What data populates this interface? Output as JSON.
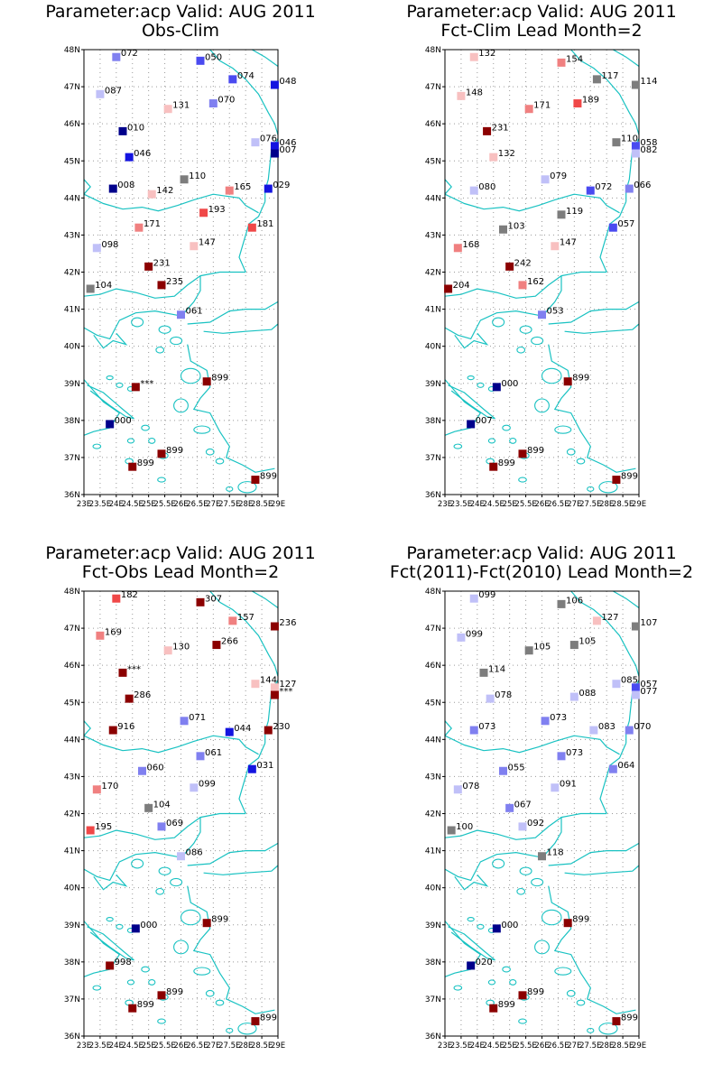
{
  "colors": {
    "coast": "#19c2c2",
    "grid": "#9a9a9a",
    "frame": "#000000",
    "gray": "#7d7d7d",
    "scale": [
      "#00008b",
      "#1414e0",
      "#4a4af0",
      "#8080f0",
      "#c0c0f8",
      "#f8c0c0",
      "#f08080",
      "#f04848",
      "#d81414",
      "#8b0000"
    ]
  },
  "axes": {
    "lat_ticks": [
      "36N",
      "37N",
      "38N",
      "39N",
      "40N",
      "41N",
      "42N",
      "43N",
      "44N",
      "45N",
      "46N",
      "47N",
      "48N"
    ],
    "lon_ticks": [
      "23E",
      "23.5E",
      "24E",
      "24.5E",
      "25E",
      "25.5E",
      "26E",
      "26.5E",
      "27E",
      "27.5E",
      "28E",
      "28.5E",
      "29E"
    ],
    "xlim": [
      23,
      29
    ],
    "ylim": [
      36,
      48
    ]
  },
  "chart_data": [
    {
      "type": "scatter",
      "title": "Parameter:acp Valid: AUG 2011",
      "subtitle": "Obs-Clim",
      "points": [
        {
          "lon": 24.0,
          "lat": 47.8,
          "label": "072",
          "color": "#8080f0"
        },
        {
          "lon": 26.6,
          "lat": 47.7,
          "label": "050",
          "color": "#4a4af0"
        },
        {
          "lon": 27.6,
          "lat": 47.2,
          "label": "074",
          "color": "#4a4af0"
        },
        {
          "lon": 28.9,
          "lat": 47.05,
          "label": "048",
          "color": "#1414e0"
        },
        {
          "lon": 23.5,
          "lat": 46.8,
          "label": "087",
          "color": "#c0c0f8"
        },
        {
          "lon": 25.6,
          "lat": 46.4,
          "label": "131",
          "color": "#f8c0c0"
        },
        {
          "lon": 27.0,
          "lat": 46.55,
          "label": "070",
          "color": "#8080f0"
        },
        {
          "lon": 24.2,
          "lat": 45.8,
          "label": "010",
          "color": "#00008b"
        },
        {
          "lon": 28.3,
          "lat": 45.5,
          "label": "076",
          "color": "#c0c0f8"
        },
        {
          "lon": 28.9,
          "lat": 45.4,
          "label": "046",
          "color": "#1414e0"
        },
        {
          "lon": 28.9,
          "lat": 45.2,
          "label": "007",
          "color": "#00008b"
        },
        {
          "lon": 24.4,
          "lat": 45.1,
          "label": "046",
          "color": "#1414e0"
        },
        {
          "lon": 26.1,
          "lat": 44.5,
          "label": "110",
          "color": "#7d7d7d"
        },
        {
          "lon": 23.9,
          "lat": 44.25,
          "label": "008",
          "color": "#00008b"
        },
        {
          "lon": 25.1,
          "lat": 44.1,
          "label": "142",
          "color": "#f8c0c0"
        },
        {
          "lon": 27.5,
          "lat": 44.2,
          "label": "165",
          "color": "#f08080"
        },
        {
          "lon": 28.7,
          "lat": 44.25,
          "label": "029",
          "color": "#1414e0"
        },
        {
          "lon": 26.7,
          "lat": 43.6,
          "label": "193",
          "color": "#f04848"
        },
        {
          "lon": 24.7,
          "lat": 43.2,
          "label": "171",
          "color": "#f08080"
        },
        {
          "lon": 28.2,
          "lat": 43.2,
          "label": "181",
          "color": "#f04848"
        },
        {
          "lon": 23.4,
          "lat": 42.65,
          "label": "098",
          "color": "#c0c0f8"
        },
        {
          "lon": 26.4,
          "lat": 42.7,
          "label": "147",
          "color": "#f8c0c0"
        },
        {
          "lon": 25.0,
          "lat": 42.15,
          "label": "231",
          "color": "#8b0000"
        },
        {
          "lon": 25.4,
          "lat": 41.65,
          "label": "235",
          "color": "#8b0000"
        },
        {
          "lon": 23.2,
          "lat": 41.55,
          "label": "104",
          "color": "#7d7d7d"
        },
        {
          "lon": 26.0,
          "lat": 40.85,
          "label": "061",
          "color": "#8080f0"
        },
        {
          "lon": 26.8,
          "lat": 39.05,
          "label": "899",
          "color": "#8b0000"
        },
        {
          "lon": 24.6,
          "lat": 38.9,
          "label": "***",
          "color": "#8b0000"
        },
        {
          "lon": 23.8,
          "lat": 37.9,
          "label": "000",
          "color": "#00008b"
        },
        {
          "lon": 25.4,
          "lat": 37.1,
          "label": "899",
          "color": "#8b0000"
        },
        {
          "lon": 24.5,
          "lat": 36.75,
          "label": "899",
          "color": "#8b0000"
        },
        {
          "lon": 28.3,
          "lat": 36.4,
          "label": "899",
          "color": "#8b0000"
        }
      ]
    },
    {
      "type": "scatter",
      "title": "Parameter:acp Valid: AUG 2011",
      "subtitle": "Fct-Clim Lead Month=2",
      "points": [
        {
          "lon": 23.9,
          "lat": 47.8,
          "label": "132",
          "color": "#f8c0c0"
        },
        {
          "lon": 26.6,
          "lat": 47.65,
          "label": "154",
          "color": "#f08080"
        },
        {
          "lon": 27.7,
          "lat": 47.2,
          "label": "117",
          "color": "#7d7d7d"
        },
        {
          "lon": 28.9,
          "lat": 47.05,
          "label": "114",
          "color": "#7d7d7d"
        },
        {
          "lon": 23.5,
          "lat": 46.75,
          "label": "148",
          "color": "#f8c0c0"
        },
        {
          "lon": 25.6,
          "lat": 46.4,
          "label": "171",
          "color": "#f08080"
        },
        {
          "lon": 27.1,
          "lat": 46.55,
          "label": "189",
          "color": "#f04848"
        },
        {
          "lon": 24.3,
          "lat": 45.8,
          "label": "231",
          "color": "#8b0000"
        },
        {
          "lon": 28.3,
          "lat": 45.5,
          "label": "110",
          "color": "#7d7d7d"
        },
        {
          "lon": 28.9,
          "lat": 45.4,
          "label": "058",
          "color": "#4a4af0"
        },
        {
          "lon": 28.9,
          "lat": 45.2,
          "label": "082",
          "color": "#c0c0f8"
        },
        {
          "lon": 24.5,
          "lat": 45.1,
          "label": "132",
          "color": "#f8c0c0"
        },
        {
          "lon": 26.1,
          "lat": 44.5,
          "label": "079",
          "color": "#c0c0f8"
        },
        {
          "lon": 23.9,
          "lat": 44.2,
          "label": "080",
          "color": "#c0c0f8"
        },
        {
          "lon": 27.5,
          "lat": 44.2,
          "label": "072",
          "color": "#4a4af0"
        },
        {
          "lon": 28.7,
          "lat": 44.25,
          "label": "066",
          "color": "#8080f0"
        },
        {
          "lon": 26.6,
          "lat": 43.55,
          "label": "119",
          "color": "#7d7d7d"
        },
        {
          "lon": 28.2,
          "lat": 43.2,
          "label": "057",
          "color": "#4a4af0"
        },
        {
          "lon": 24.8,
          "lat": 43.15,
          "label": "103",
          "color": "#7d7d7d"
        },
        {
          "lon": 23.4,
          "lat": 42.65,
          "label": "168",
          "color": "#f08080"
        },
        {
          "lon": 26.4,
          "lat": 42.7,
          "label": "147",
          "color": "#f8c0c0"
        },
        {
          "lon": 25.0,
          "lat": 42.15,
          "label": "242",
          "color": "#8b0000"
        },
        {
          "lon": 25.4,
          "lat": 41.65,
          "label": "162",
          "color": "#f08080"
        },
        {
          "lon": 23.1,
          "lat": 41.55,
          "label": "204",
          "color": "#8b0000"
        },
        {
          "lon": 26.0,
          "lat": 40.85,
          "label": "053",
          "color": "#8080f0"
        },
        {
          "lon": 26.8,
          "lat": 39.05,
          "label": "899",
          "color": "#8b0000"
        },
        {
          "lon": 24.6,
          "lat": 38.9,
          "label": "000",
          "color": "#00008b"
        },
        {
          "lon": 23.8,
          "lat": 37.9,
          "label": "007",
          "color": "#00008b"
        },
        {
          "lon": 25.4,
          "lat": 37.1,
          "label": "899",
          "color": "#8b0000"
        },
        {
          "lon": 24.5,
          "lat": 36.75,
          "label": "899",
          "color": "#8b0000"
        },
        {
          "lon": 28.3,
          "lat": 36.4,
          "label": "899",
          "color": "#8b0000"
        }
      ]
    },
    {
      "type": "scatter",
      "title": "Parameter:acp Valid: AUG 2011",
      "subtitle": "Fct-Obs Lead Month=2",
      "points": [
        {
          "lon": 24.0,
          "lat": 47.8,
          "label": "182",
          "color": "#f04848"
        },
        {
          "lon": 26.6,
          "lat": 47.7,
          "label": "307",
          "color": "#8b0000"
        },
        {
          "lon": 27.6,
          "lat": 47.2,
          "label": "157",
          "color": "#f08080"
        },
        {
          "lon": 28.9,
          "lat": 47.05,
          "label": "236",
          "color": "#8b0000"
        },
        {
          "lon": 23.5,
          "lat": 46.8,
          "label": "169",
          "color": "#f08080"
        },
        {
          "lon": 25.6,
          "lat": 46.4,
          "label": "130",
          "color": "#f8c0c0"
        },
        {
          "lon": 27.1,
          "lat": 46.55,
          "label": "266",
          "color": "#8b0000"
        },
        {
          "lon": 24.2,
          "lat": 45.8,
          "label": "***",
          "color": "#8b0000"
        },
        {
          "lon": 28.3,
          "lat": 45.5,
          "label": "144",
          "color": "#f8c0c0"
        },
        {
          "lon": 28.9,
          "lat": 45.4,
          "label": "127",
          "color": "#f8c0c0"
        },
        {
          "lon": 28.9,
          "lat": 45.2,
          "label": "***",
          "color": "#8b0000"
        },
        {
          "lon": 24.4,
          "lat": 45.1,
          "label": "286",
          "color": "#8b0000"
        },
        {
          "lon": 26.1,
          "lat": 44.5,
          "label": "071",
          "color": "#8080f0"
        },
        {
          "lon": 23.9,
          "lat": 44.25,
          "label": "916",
          "color": "#8b0000"
        },
        {
          "lon": 27.5,
          "lat": 44.2,
          "label": "044",
          "color": "#1414e0"
        },
        {
          "lon": 28.7,
          "lat": 44.25,
          "label": "230",
          "color": "#8b0000"
        },
        {
          "lon": 26.6,
          "lat": 43.55,
          "label": "061",
          "color": "#8080f0"
        },
        {
          "lon": 28.2,
          "lat": 43.2,
          "label": "031",
          "color": "#1414e0"
        },
        {
          "lon": 24.8,
          "lat": 43.15,
          "label": "060",
          "color": "#8080f0"
        },
        {
          "lon": 23.4,
          "lat": 42.65,
          "label": "170",
          "color": "#f08080"
        },
        {
          "lon": 26.4,
          "lat": 42.7,
          "label": "099",
          "color": "#c0c0f8"
        },
        {
          "lon": 25.0,
          "lat": 42.15,
          "label": "104",
          "color": "#7d7d7d"
        },
        {
          "lon": 25.4,
          "lat": 41.65,
          "label": "069",
          "color": "#8080f0"
        },
        {
          "lon": 23.2,
          "lat": 41.55,
          "label": "195",
          "color": "#f04848"
        },
        {
          "lon": 26.0,
          "lat": 40.85,
          "label": "086",
          "color": "#c0c0f8"
        },
        {
          "lon": 26.8,
          "lat": 39.05,
          "label": "899",
          "color": "#8b0000"
        },
        {
          "lon": 24.6,
          "lat": 38.9,
          "label": "000",
          "color": "#00008b"
        },
        {
          "lon": 23.8,
          "lat": 37.9,
          "label": "998",
          "color": "#8b0000"
        },
        {
          "lon": 25.4,
          "lat": 37.1,
          "label": "899",
          "color": "#8b0000"
        },
        {
          "lon": 24.5,
          "lat": 36.75,
          "label": "899",
          "color": "#8b0000"
        },
        {
          "lon": 28.3,
          "lat": 36.4,
          "label": "899",
          "color": "#8b0000"
        }
      ]
    },
    {
      "type": "scatter",
      "title": "Parameter:acp Valid: AUG 2011",
      "subtitle": "Fct(2011)-Fct(2010) Lead Month=2",
      "points": [
        {
          "lon": 23.9,
          "lat": 47.8,
          "label": "099",
          "color": "#c0c0f8"
        },
        {
          "lon": 26.6,
          "lat": 47.65,
          "label": "106",
          "color": "#7d7d7d"
        },
        {
          "lon": 27.7,
          "lat": 47.2,
          "label": "127",
          "color": "#f8c0c0"
        },
        {
          "lon": 28.9,
          "lat": 47.05,
          "label": "107",
          "color": "#7d7d7d"
        },
        {
          "lon": 23.5,
          "lat": 46.75,
          "label": "099",
          "color": "#c0c0f8"
        },
        {
          "lon": 25.6,
          "lat": 46.4,
          "label": "105",
          "color": "#7d7d7d"
        },
        {
          "lon": 27.0,
          "lat": 46.55,
          "label": "105",
          "color": "#7d7d7d"
        },
        {
          "lon": 24.2,
          "lat": 45.8,
          "label": "114",
          "color": "#7d7d7d"
        },
        {
          "lon": 28.3,
          "lat": 45.5,
          "label": "085",
          "color": "#c0c0f8"
        },
        {
          "lon": 28.9,
          "lat": 45.4,
          "label": "057",
          "color": "#4a4af0"
        },
        {
          "lon": 28.9,
          "lat": 45.2,
          "label": "077",
          "color": "#c0c0f8"
        },
        {
          "lon": 24.4,
          "lat": 45.1,
          "label": "078",
          "color": "#c0c0f8"
        },
        {
          "lon": 27.0,
          "lat": 45.15,
          "label": "088",
          "color": "#c0c0f8"
        },
        {
          "lon": 26.1,
          "lat": 44.5,
          "label": "073",
          "color": "#8080f0"
        },
        {
          "lon": 23.9,
          "lat": 44.25,
          "label": "073",
          "color": "#8080f0"
        },
        {
          "lon": 27.6,
          "lat": 44.25,
          "label": "083",
          "color": "#c0c0f8"
        },
        {
          "lon": 28.7,
          "lat": 44.25,
          "label": "070",
          "color": "#8080f0"
        },
        {
          "lon": 26.6,
          "lat": 43.55,
          "label": "073",
          "color": "#8080f0"
        },
        {
          "lon": 28.2,
          "lat": 43.2,
          "label": "064",
          "color": "#8080f0"
        },
        {
          "lon": 24.8,
          "lat": 43.15,
          "label": "055",
          "color": "#8080f0"
        },
        {
          "lon": 23.4,
          "lat": 42.65,
          "label": "078",
          "color": "#c0c0f8"
        },
        {
          "lon": 26.4,
          "lat": 42.7,
          "label": "091",
          "color": "#c0c0f8"
        },
        {
          "lon": 25.0,
          "lat": 42.15,
          "label": "067",
          "color": "#8080f0"
        },
        {
          "lon": 25.4,
          "lat": 41.65,
          "label": "092",
          "color": "#c0c0f8"
        },
        {
          "lon": 23.2,
          "lat": 41.55,
          "label": "100",
          "color": "#7d7d7d"
        },
        {
          "lon": 26.0,
          "lat": 40.85,
          "label": "118",
          "color": "#7d7d7d"
        },
        {
          "lon": 26.8,
          "lat": 39.05,
          "label": "899",
          "color": "#8b0000"
        },
        {
          "lon": 24.6,
          "lat": 38.9,
          "label": "000",
          "color": "#00008b"
        },
        {
          "lon": 23.8,
          "lat": 37.9,
          "label": "020",
          "color": "#00008b"
        },
        {
          "lon": 25.4,
          "lat": 37.1,
          "label": "899",
          "color": "#8b0000"
        },
        {
          "lon": 24.5,
          "lat": 36.75,
          "label": "899",
          "color": "#8b0000"
        },
        {
          "lon": 28.3,
          "lat": 36.4,
          "label": "899",
          "color": "#8b0000"
        }
      ]
    }
  ]
}
